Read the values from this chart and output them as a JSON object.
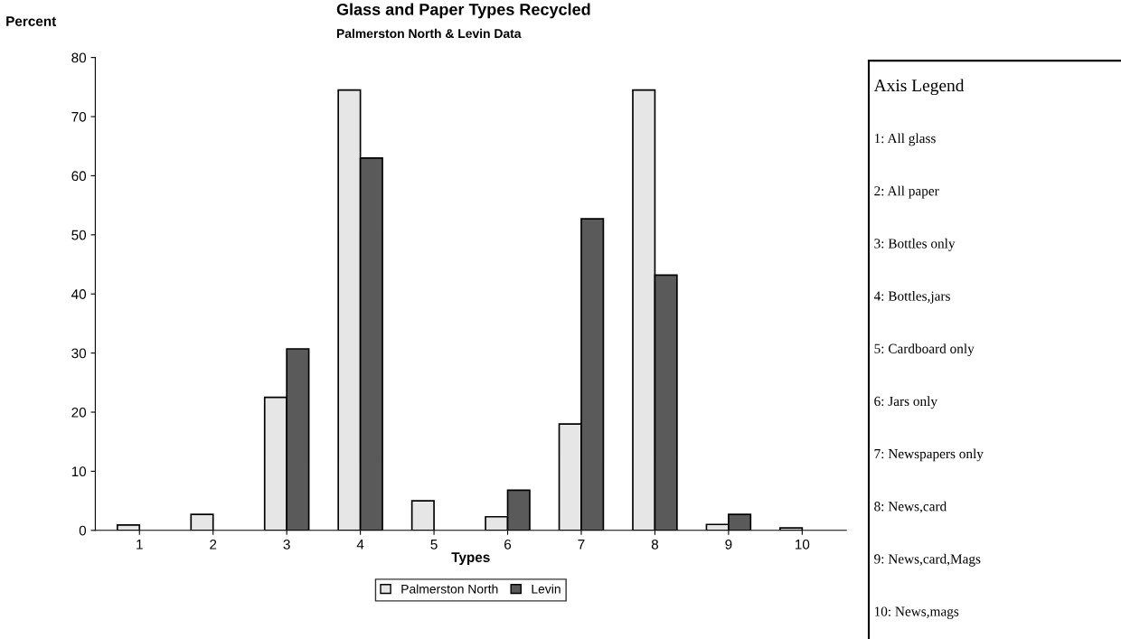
{
  "chart_data": {
    "type": "bar",
    "title": "Glass and Paper Types Recycled",
    "subtitle": "Palmerston North & Levin Data",
    "xlabel": "Types",
    "ylabel": "Percent",
    "categories": [
      "1",
      "2",
      "3",
      "4",
      "5",
      "6",
      "7",
      "8",
      "9",
      "10"
    ],
    "series": [
      {
        "name": "Palmerston North",
        "color": "#e6e6e6",
        "values": [
          0.9,
          2.7,
          22.5,
          74.5,
          5.0,
          2.3,
          18,
          74.5,
          1.0,
          0.4
        ]
      },
      {
        "name": "Levin",
        "color": "#5a5a5a",
        "values": [
          null,
          null,
          30.7,
          63,
          null,
          6.8,
          52.7,
          43.2,
          2.7,
          null
        ]
      }
    ],
    "ylim": [
      0,
      80
    ],
    "yticks": [
      0,
      10,
      20,
      30,
      40,
      50,
      60,
      70,
      80
    ],
    "grid": false,
    "legend": "bottom",
    "annotations": [
      "Axis Legend",
      "1: All glass",
      "2: All paper",
      "3: Bottles only",
      "4: Bottles,jars",
      "5: Cardboard only",
      "6: Jars only",
      "7: Newspapers only",
      "8: News,card",
      "9: News,card,Mags",
      "10: News,mags"
    ]
  }
}
